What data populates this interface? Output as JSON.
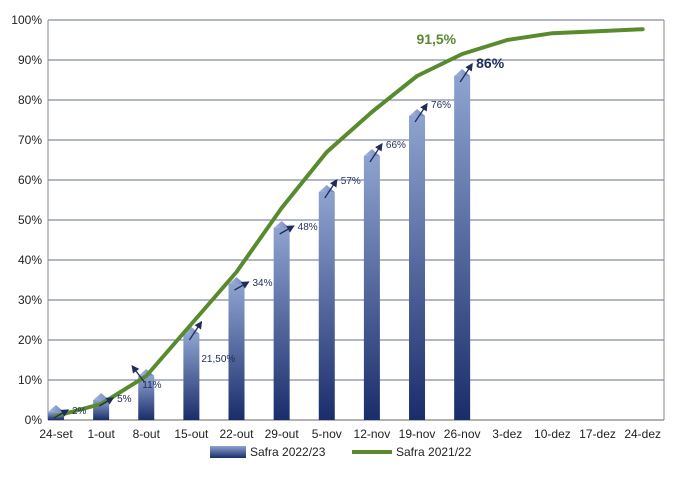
{
  "chart_data": {
    "type": "bar",
    "categories": [
      "24-set",
      "1-out",
      "8-out",
      "15-out",
      "22-out",
      "29-out",
      "5-nov",
      "12-nov",
      "19-nov",
      "26-nov",
      "3-dez",
      "10-dez",
      "17-dez",
      "24-dez"
    ],
    "ylim": [
      0,
      100
    ],
    "yticks": [
      "0%",
      "10%",
      "20%",
      "30%",
      "40%",
      "50%",
      "60%",
      "70%",
      "80%",
      "90%",
      "100%"
    ],
    "grid": true,
    "legend_position": "bottom",
    "series": [
      {
        "name": "Safra 2022/23",
        "kind": "bar",
        "color": "#2a4080",
        "values": [
          2,
          5,
          11,
          21.5,
          34,
          48,
          57,
          66,
          76,
          86,
          null,
          null,
          null,
          null
        ],
        "labels": [
          "2%",
          "5%",
          "11%",
          "21,50%",
          "34%",
          "48%",
          "57%",
          "66%",
          "76%",
          "86%",
          "",
          "",
          "",
          ""
        ]
      },
      {
        "name": "Safra 2021/22",
        "kind": "line",
        "color": "#5a8a2e",
        "values": [
          1,
          4,
          11,
          24,
          37,
          53,
          67,
          77,
          86,
          91.5,
          95,
          96.7,
          97.2,
          97.7
        ],
        "annotation": {
          "index": 9,
          "text": "91,5%"
        }
      }
    ]
  }
}
